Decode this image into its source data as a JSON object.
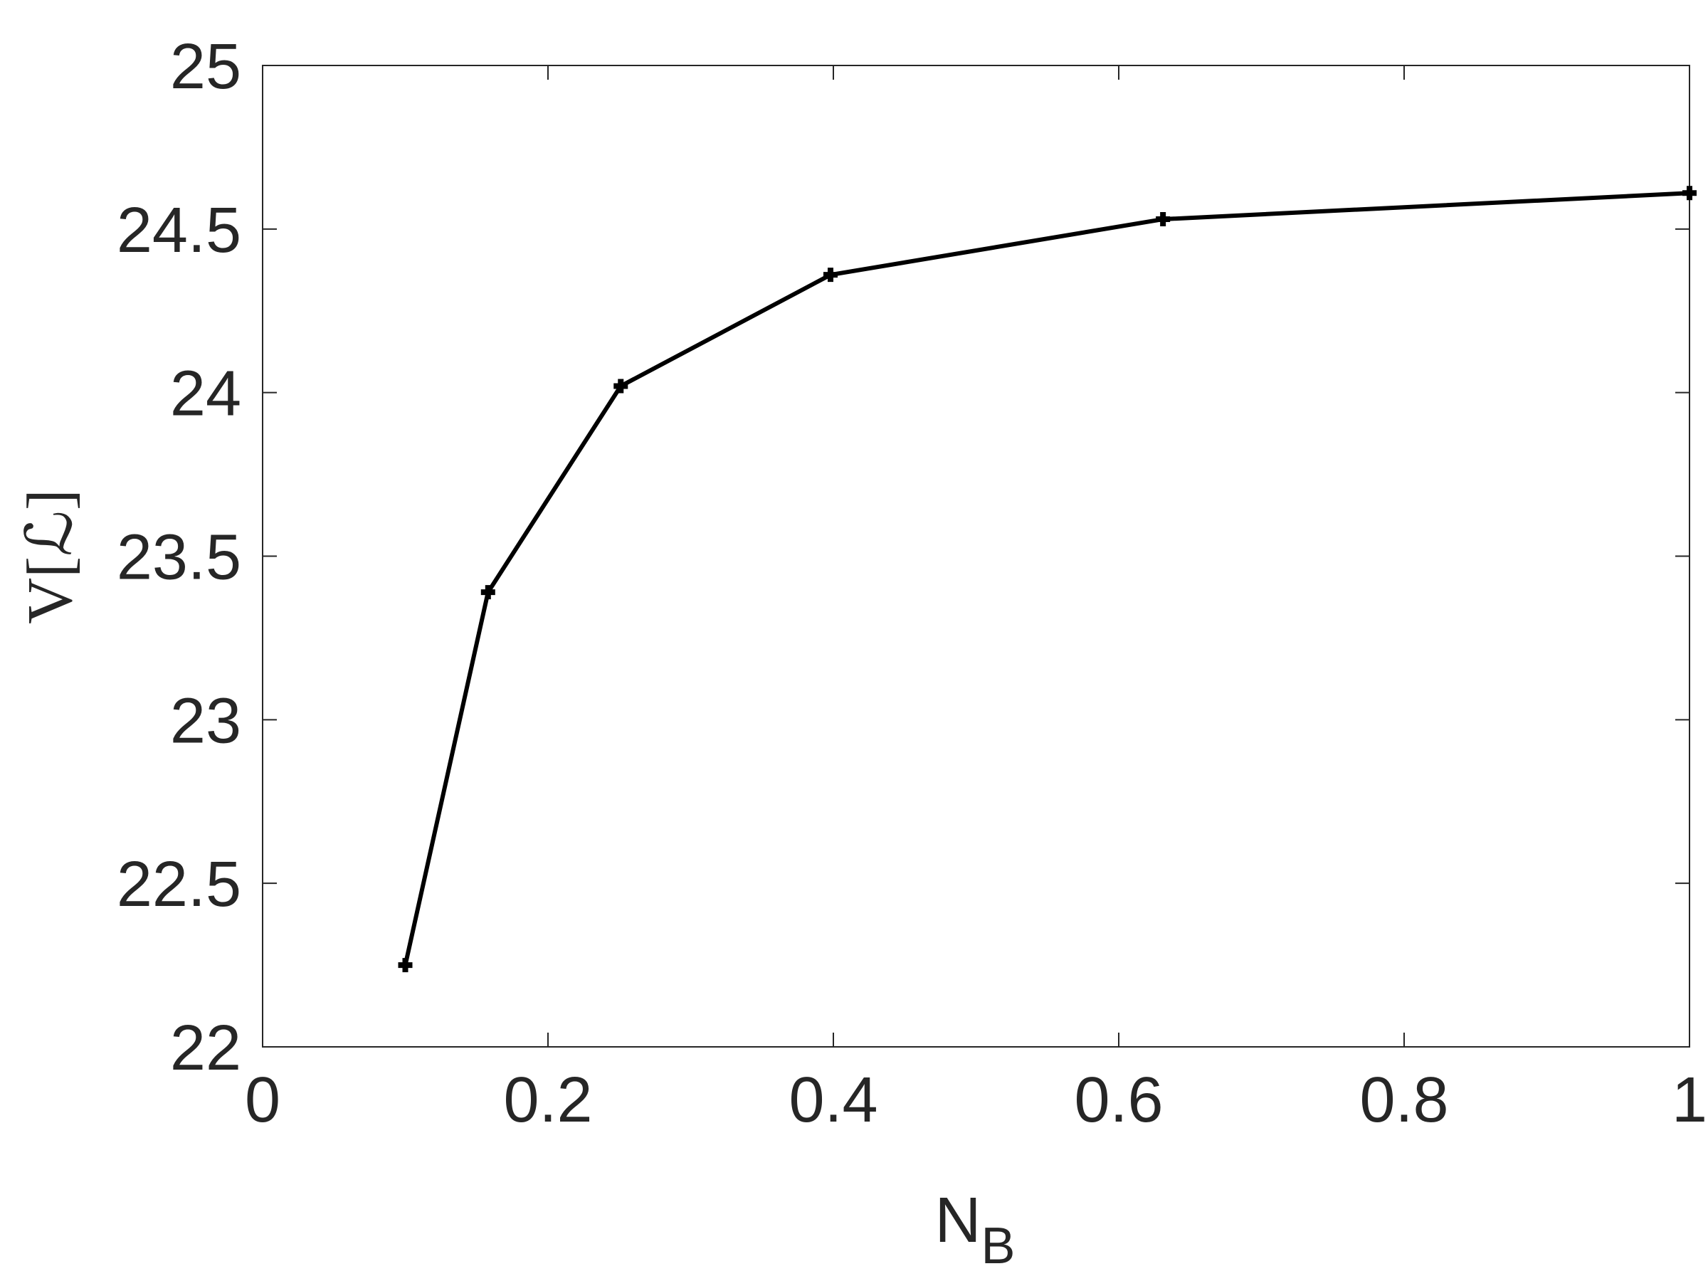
{
  "chart_data": {
    "type": "line",
    "x_label": {
      "main": "N",
      "sub": "B"
    },
    "y_label": "V[ℒ]",
    "x": [
      0.1,
      0.158,
      0.251,
      0.398,
      0.631,
      1.0
    ],
    "series": [
      {
        "color": "#000000",
        "values": [
          22.25,
          23.39,
          24.02,
          24.36,
          24.53,
          24.61
        ]
      }
    ],
    "xlim": [
      0,
      1
    ],
    "xticks": [
      0,
      0.2,
      0.4,
      0.6,
      0.8,
      1
    ],
    "ylim": [
      22,
      25
    ],
    "yticks": [
      22,
      22.5,
      23,
      23.5,
      24,
      24.5,
      25
    ],
    "grid": false
  }
}
